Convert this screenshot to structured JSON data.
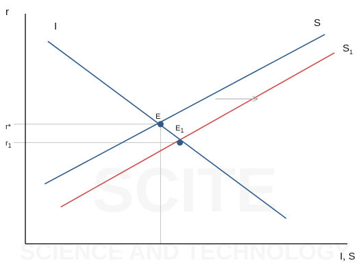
{
  "chart_data": {
    "type": "line",
    "title": "",
    "ylabel": "r",
    "xlabel": "I, S",
    "grid": false,
    "xlim": [
      0,
      100
    ],
    "ylim": [
      0,
      100
    ],
    "series": [
      {
        "name": "I",
        "label": "I",
        "color": "#2e5b8a",
        "points": [
          [
            7,
            88
          ],
          [
            81,
            11
          ]
        ]
      },
      {
        "name": "S",
        "label": "S",
        "color": "#2e5b8a",
        "points": [
          [
            6,
            26
          ],
          [
            93,
            91
          ]
        ]
      },
      {
        "name": "S1",
        "label": "S",
        "label_sub": "1",
        "color": "#cc4a4a",
        "points": [
          [
            11,
            16
          ],
          [
            96,
            83
          ]
        ]
      }
    ],
    "equilibria": [
      {
        "label": "E",
        "label_sub": "",
        "x": 42,
        "y": 52,
        "color": "#2e5b8a"
      },
      {
        "label": "E",
        "label_sub": "1",
        "x": 48,
        "y": 44,
        "color": "#2e5b8a"
      }
    ],
    "ticks_y": [
      {
        "label": "r*",
        "label_sub": "",
        "value": 52
      },
      {
        "label": "r",
        "label_sub": "1",
        "value": 44
      }
    ],
    "shift_arrow": {
      "from": [
        59,
        63
      ],
      "to": [
        72,
        63
      ],
      "color": "#a8a8b0"
    },
    "guide_color": "#c4c4c4",
    "axis_color": "#000000"
  },
  "watermark": {
    "line1": "SCITE",
    "line2": "SCIENCE AND TECHNOLOGY",
    "color": "#d8d8d8"
  }
}
